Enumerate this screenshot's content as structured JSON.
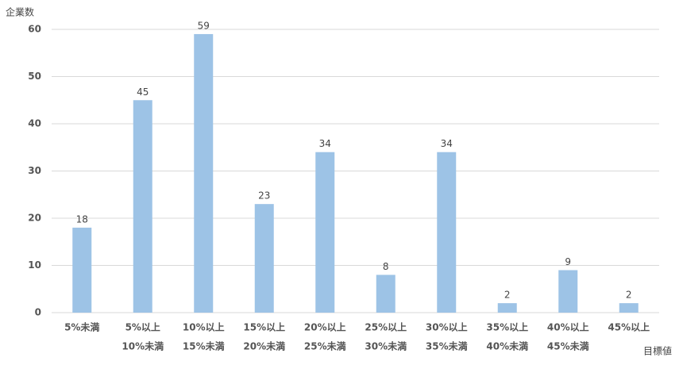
{
  "chart_data": {
    "type": "bar",
    "y_label": "企業数",
    "x_label": "目標値",
    "categories": [
      [
        "5%未満"
      ],
      [
        "5%以上",
        "10%未満"
      ],
      [
        "10%以上",
        "15%未満"
      ],
      [
        "15%以上",
        "20%未満"
      ],
      [
        "20%以上",
        "25%未満"
      ],
      [
        "25%以上",
        "30%未満"
      ],
      [
        "30%以上",
        "35%未満"
      ],
      [
        "35%以上",
        "40%未満"
      ],
      [
        "40%以上",
        "45%未満"
      ],
      [
        "45%以上"
      ]
    ],
    "values": [
      18,
      45,
      59,
      23,
      34,
      8,
      34,
      2,
      9,
      2
    ],
    "color": "#9dc3e6",
    "ylim": [
      0,
      60
    ],
    "yticks": [
      0,
      10,
      20,
      30,
      40,
      50,
      60
    ],
    "grid": true
  }
}
